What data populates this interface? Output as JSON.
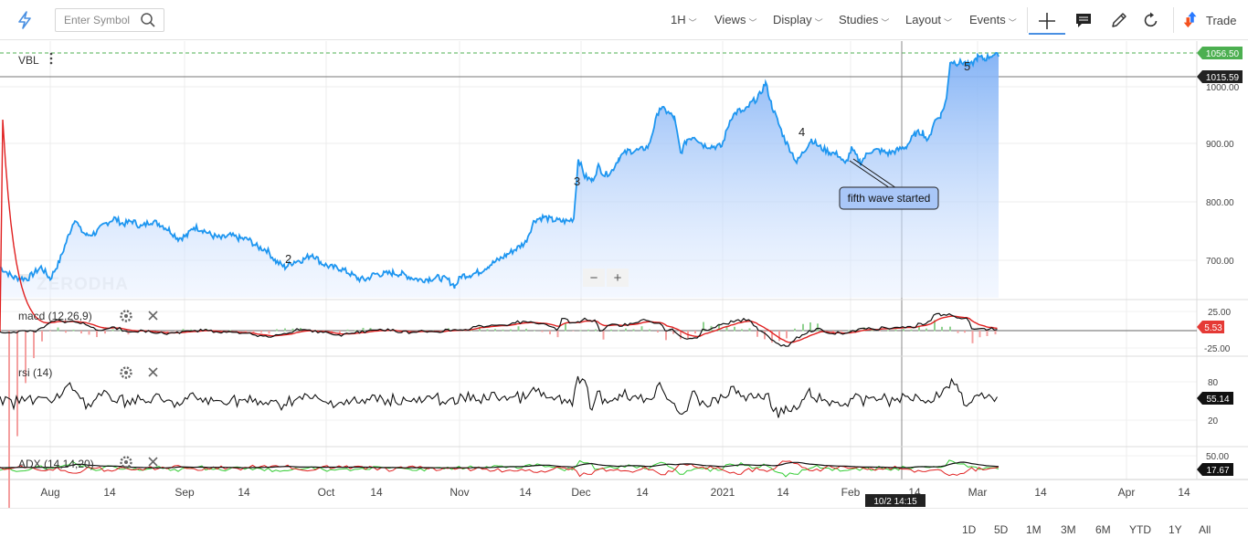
{
  "toolbar": {
    "search_placeholder": "Enter Symbol",
    "menus": [
      "1H",
      "Views",
      "Display",
      "Studies",
      "Layout",
      "Events"
    ],
    "trade_label": "Trade"
  },
  "symbol": "VBL",
  "watermark": "ZERODHA",
  "zoom_minus": "−",
  "zoom_plus": "+",
  "price_axis": {
    "ticks": [
      "1000.00",
      "900.00",
      "800.00",
      "700.00"
    ],
    "current_price": "1056.50",
    "crosshair_price": "1015.59",
    "current_price_color": "#4caf50"
  },
  "time_axis": {
    "labels": [
      "Aug",
      "14",
      "Sep",
      "14",
      "Oct",
      "14",
      "Nov",
      "14",
      "Dec",
      "14",
      "2021",
      "14",
      "Feb",
      "14",
      "Mar",
      "14",
      "Apr",
      "14"
    ],
    "crosshair_time": "10/2 14:15"
  },
  "annotations": {
    "wave_labels": [
      "2",
      "3",
      "4",
      "5"
    ],
    "callout": "fifth wave started"
  },
  "studies": [
    {
      "label": "macd (12,26,9)",
      "ticks": [
        "25.00",
        "-25.00"
      ],
      "value": "5.53",
      "value_color": "#e53935"
    },
    {
      "label": "rsi (14)",
      "ticks": [
        "80",
        "20"
      ],
      "value": "55.14",
      "value_color": "#111111"
    },
    {
      "label": "ADX (14,14,20)",
      "ticks": [
        "50.00"
      ],
      "value": "17.67",
      "value_color": "#111111"
    }
  ],
  "ranges": [
    "1D",
    "5D",
    "1M",
    "3M",
    "6M",
    "YTD",
    "1Y",
    "All"
  ],
  "chart_data": {
    "type": "area",
    "ylim": [
      640,
      1075
    ],
    "price_anchors": [
      [
        0,
        690
      ],
      [
        15,
        672
      ],
      [
        30,
        670
      ],
      [
        45,
        690
      ],
      [
        55,
        670
      ],
      [
        65,
        700
      ],
      [
        75,
        745
      ],
      [
        82,
        775
      ],
      [
        88,
        755
      ],
      [
        95,
        745
      ],
      [
        105,
        750
      ],
      [
        115,
        765
      ],
      [
        125,
        775
      ],
      [
        135,
        765
      ],
      [
        145,
        770
      ],
      [
        155,
        760
      ],
      [
        165,
        770
      ],
      [
        175,
        765
      ],
      [
        185,
        755
      ],
      [
        195,
        740
      ],
      [
        205,
        745
      ],
      [
        212,
        760
      ],
      [
        222,
        755
      ],
      [
        232,
        745
      ],
      [
        242,
        740
      ],
      [
        252,
        745
      ],
      [
        262,
        740
      ],
      [
        272,
        738
      ],
      [
        282,
        725
      ],
      [
        292,
        720
      ],
      [
        302,
        700
      ],
      [
        312,
        690
      ],
      [
        322,
        700
      ],
      [
        332,
        703
      ],
      [
        342,
        713
      ],
      [
        352,
        697
      ],
      [
        362,
        690
      ],
      [
        372,
        688
      ],
      [
        382,
        680
      ],
      [
        392,
        670
      ],
      [
        400,
        668
      ],
      [
        410,
        678
      ],
      [
        420,
        678
      ],
      [
        430,
        680
      ],
      [
        440,
        678
      ],
      [
        450,
        672
      ],
      [
        460,
        668
      ],
      [
        470,
        670
      ],
      [
        480,
        672
      ],
      [
        490,
        668
      ],
      [
        498,
        657
      ],
      [
        505,
        675
      ],
      [
        515,
        677
      ],
      [
        525,
        682
      ],
      [
        535,
        693
      ],
      [
        545,
        702
      ],
      [
        555,
        712
      ],
      [
        565,
        722
      ],
      [
        575,
        733
      ],
      [
        585,
        772
      ],
      [
        595,
        777
      ],
      [
        605,
        772
      ],
      [
        615,
        770
      ],
      [
        622,
        770
      ],
      [
        628,
        775
      ],
      [
        633,
        880
      ],
      [
        640,
        848
      ],
      [
        648,
        840
      ],
      [
        655,
        865
      ],
      [
        662,
        850
      ],
      [
        670,
        858
      ],
      [
        678,
        882
      ],
      [
        688,
        892
      ],
      [
        700,
        893
      ],
      [
        710,
        900
      ],
      [
        716,
        935
      ],
      [
        722,
        968
      ],
      [
        730,
        960
      ],
      [
        738,
        950
      ],
      [
        745,
        888
      ],
      [
        752,
        912
      ],
      [
        760,
        918
      ],
      [
        770,
        902
      ],
      [
        780,
        900
      ],
      [
        790,
        900
      ],
      [
        800,
        950
      ],
      [
        808,
        962
      ],
      [
        815,
        960
      ],
      [
        822,
        975
      ],
      [
        830,
        985
      ],
      [
        838,
        1010
      ],
      [
        845,
        970
      ],
      [
        852,
        940
      ],
      [
        860,
        908
      ],
      [
        866,
        892
      ],
      [
        872,
        872
      ],
      [
        880,
        892
      ],
      [
        888,
        912
      ],
      [
        898,
        898
      ],
      [
        908,
        890
      ],
      [
        918,
        885
      ],
      [
        925,
        868
      ],
      [
        932,
        895
      ],
      [
        942,
        872
      ],
      [
        952,
        892
      ],
      [
        962,
        893
      ],
      [
        972,
        888
      ],
      [
        982,
        893
      ],
      [
        992,
        900
      ],
      [
        1002,
        922
      ],
      [
        1010,
        925
      ],
      [
        1016,
        908
      ],
      [
        1022,
        942
      ],
      [
        1030,
        955
      ],
      [
        1036,
        982
      ],
      [
        1040,
        1048
      ],
      [
        1048,
        1045
      ],
      [
        1055,
        1046
      ],
      [
        1062,
        1040
      ],
      [
        1070,
        1055
      ],
      [
        1078,
        1052
      ],
      [
        1087,
        1060
      ],
      [
        1093,
        1056
      ]
    ]
  }
}
